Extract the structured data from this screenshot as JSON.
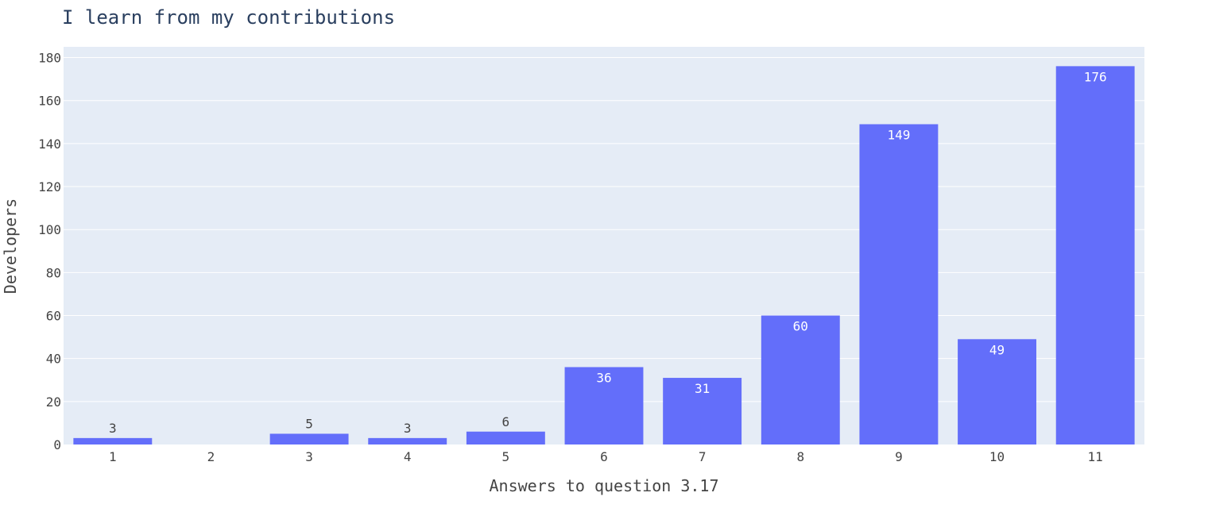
{
  "chart_data": {
    "type": "bar",
    "title": "I learn from my contributions",
    "xlabel": "Answers to question 3.17",
    "ylabel": "Developers",
    "categories": [
      "1",
      "2",
      "3",
      "4",
      "5",
      "6",
      "7",
      "8",
      "9",
      "10",
      "11"
    ],
    "values": [
      3,
      0,
      5,
      3,
      6,
      36,
      31,
      60,
      149,
      49,
      176
    ],
    "data_labels": [
      "3",
      "",
      "5",
      "3",
      "6",
      "36",
      "31",
      "60",
      "149",
      "49",
      "176"
    ],
    "ylim": [
      0,
      185
    ],
    "yticks": [
      0,
      20,
      40,
      60,
      80,
      100,
      120,
      140,
      160,
      180
    ],
    "grid": true,
    "colors": {
      "bar": "#636efa",
      "plot_bg": "#e5ecf6",
      "grid": "#ffffff",
      "label_inside": "#ffffff",
      "label_outside": "#444444"
    }
  }
}
